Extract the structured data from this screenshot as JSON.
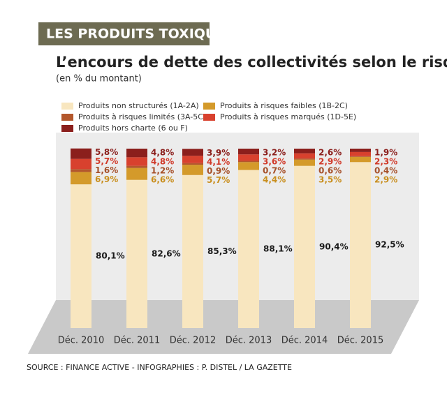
{
  "header": "LES PRODUITS TOXIQUES",
  "source": "SOURCE : FINANCE ACTIVE - INFOGRAPHIES : P. DISTEL / LA GAZETTE",
  "chart_data": {
    "type": "stacked_bar",
    "title": "L’encours de dette des collectivités selon le risque",
    "subtitle": "(en % du montant)",
    "categories": [
      "Déc. 2010",
      "Déc. 2011",
      "Déc. 2012",
      "Déc. 2013",
      "Déc. 2014",
      "Déc. 2015"
    ],
    "series": [
      {
        "name": "Produits non structurés (1A-2A)",
        "color": "#f8e6bf",
        "values": [
          80.1,
          82.6,
          85.3,
          88.1,
          90.4,
          92.5
        ],
        "value_labels": [
          "80,1%",
          "82,6%",
          "85,3%",
          "88,1%",
          "90,4%",
          "92,5%"
        ]
      },
      {
        "name": "Produits à risques faibles (1B-2C)",
        "color": "#d49a2a",
        "values": [
          6.9,
          6.6,
          5.7,
          4.4,
          3.5,
          2.9
        ],
        "value_labels": [
          "6,9%",
          "6,6%",
          "5,7%",
          "4,4%",
          "3,5%",
          "2,9%"
        ]
      },
      {
        "name": "Produits à risques limités (3A-5C)",
        "color": "#b3572c",
        "values": [
          1.6,
          1.2,
          0.9,
          0.7,
          0.6,
          0.4
        ],
        "value_labels": [
          "1,6%",
          "1,2%",
          "0,9%",
          "0,7%",
          "0,6%",
          "0,4%"
        ]
      },
      {
        "name": "Produits à risques marqués (1D-5E)",
        "color": "#d8412e",
        "values": [
          5.7,
          4.8,
          4.1,
          3.6,
          2.9,
          2.3
        ],
        "value_labels": [
          "5,7%",
          "4,8%",
          "4,1%",
          "3,6%",
          "2,9%",
          "2,3%"
        ]
      },
      {
        "name": "Produits hors charte (6 ou F)",
        "color": "#8b1f1c",
        "values": [
          5.8,
          4.8,
          3.9,
          3.2,
          2.6,
          1.9
        ],
        "value_labels": [
          "5,8%",
          "4,8%",
          "3,9%",
          "3,2%",
          "2,6%",
          "1,9%"
        ]
      }
    ]
  }
}
